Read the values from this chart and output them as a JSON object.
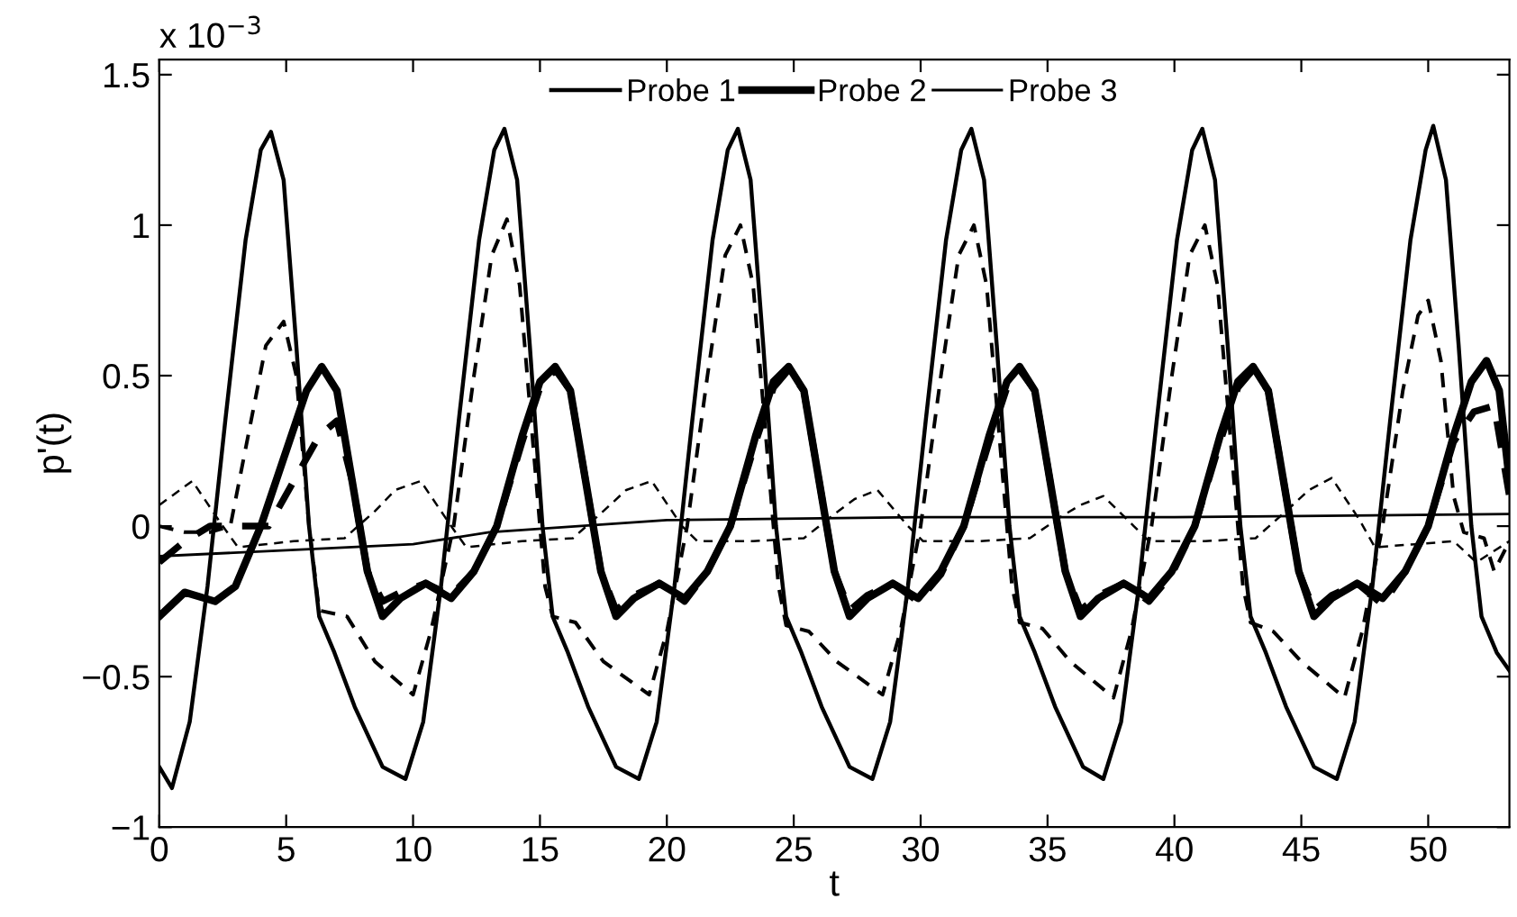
{
  "chart_data": {
    "type": "line",
    "xlabel": "t",
    "ylabel": "p'(t)",
    "annotations": [
      "x 10$^{−3}$"
    ],
    "xlim": [
      0,
      53.2
    ],
    "ylim": [
      -1,
      1.55
    ],
    "xticks": [
      0,
      5,
      10,
      15,
      20,
      25,
      30,
      35,
      40,
      45,
      50
    ],
    "yticks": [
      {
        "value": -1,
        "label": "−1"
      },
      {
        "value": -0.5,
        "label": "−0.5"
      },
      0,
      0.5,
      1,
      1.5
    ],
    "grid": false,
    "legend": "top",
    "marker": "none",
    "series": [
      {
        "name": "Probe 1",
        "color": "#000000",
        "line_style": "solid",
        "x": [
          0,
          0.5,
          1.2,
          1.9,
          2.6,
          3.4,
          4.0,
          4.4,
          4.9,
          5.4,
          5.9,
          6.3,
          6.9,
          7.7,
          8.8,
          9.7,
          10.4,
          11.1,
          11.8,
          12.6,
          13.2,
          13.6,
          14.1,
          14.6,
          15.1,
          15.5,
          16.1,
          16.9,
          18.0,
          18.9,
          19.6,
          20.3,
          21.0,
          21.8,
          22.4,
          22.8,
          23.3,
          23.8,
          24.3,
          24.7,
          25.3,
          26.1,
          27.2,
          28.1,
          28.8,
          29.5,
          30.2,
          31.0,
          31.6,
          32.0,
          32.5,
          33.0,
          33.5,
          33.9,
          34.5,
          35.3,
          36.4,
          37.2,
          37.9,
          38.6,
          39.3,
          40.1,
          40.7,
          41.1,
          41.6,
          42.1,
          42.6,
          43.0,
          43.6,
          44.4,
          45.5,
          46.4,
          47.1,
          47.8,
          48.5,
          49.3,
          49.9,
          50.2,
          50.7,
          51.2,
          51.7,
          52.1,
          52.7,
          53.2
        ],
        "values": [
          -0.8,
          -0.87,
          -0.65,
          -0.2,
          0.35,
          0.95,
          1.25,
          1.31,
          1.15,
          0.6,
          0.0,
          -0.3,
          -0.42,
          -0.6,
          -0.8,
          -0.84,
          -0.65,
          -0.2,
          0.35,
          0.95,
          1.25,
          1.32,
          1.15,
          0.6,
          0.0,
          -0.3,
          -0.42,
          -0.6,
          -0.8,
          -0.84,
          -0.65,
          -0.2,
          0.35,
          0.95,
          1.25,
          1.32,
          1.15,
          0.6,
          0.0,
          -0.3,
          -0.42,
          -0.6,
          -0.8,
          -0.84,
          -0.65,
          -0.2,
          0.35,
          0.95,
          1.25,
          1.32,
          1.15,
          0.6,
          0.0,
          -0.3,
          -0.42,
          -0.6,
          -0.8,
          -0.84,
          -0.65,
          -0.2,
          0.35,
          0.95,
          1.25,
          1.32,
          1.15,
          0.6,
          0.0,
          -0.3,
          -0.42,
          -0.6,
          -0.8,
          -0.84,
          -0.65,
          -0.2,
          0.35,
          0.95,
          1.25,
          1.33,
          1.15,
          0.6,
          0.0,
          -0.3,
          -0.42,
          -0.48
        ]
      },
      {
        "color": "#000000",
        "line_style": "dashed",
        "x": [
          0,
          1.0,
          2.0,
          2.8,
          3.5,
          4.2,
          4.9,
          5.4,
          5.9,
          6.3,
          7.4,
          8.5,
          10.0,
          10.7,
          11.6,
          12.4,
          13.1,
          13.7,
          14.2,
          14.7,
          15.2,
          15.5,
          16.4,
          17.5,
          19.3,
          20.0,
          20.8,
          21.6,
          22.3,
          22.9,
          23.4,
          23.9,
          24.4,
          24.7,
          25.6,
          26.7,
          28.5,
          29.2,
          30.0,
          30.8,
          31.5,
          32.1,
          32.6,
          33.1,
          33.6,
          33.9,
          34.8,
          35.9,
          37.6,
          38.3,
          39.1,
          39.9,
          40.6,
          41.2,
          41.7,
          42.2,
          42.7,
          43.0,
          43.9,
          45.0,
          46.7,
          47.4,
          48.2,
          49.0,
          49.6,
          50.0,
          50.5,
          51.0,
          51.4,
          52.2,
          52.6,
          53.2
        ],
        "values": [
          0.0,
          -0.02,
          -0.02,
          0.0,
          0.3,
          0.6,
          0.68,
          0.5,
          0.0,
          -0.28,
          -0.3,
          -0.45,
          -0.56,
          -0.35,
          0.0,
          0.5,
          0.9,
          1.02,
          0.8,
          0.3,
          -0.2,
          -0.3,
          -0.32,
          -0.45,
          -0.56,
          -0.35,
          0.0,
          0.5,
          0.9,
          1.0,
          0.8,
          0.3,
          -0.2,
          -0.33,
          -0.35,
          -0.45,
          -0.56,
          -0.35,
          0.0,
          0.5,
          0.9,
          1.0,
          0.8,
          0.3,
          -0.2,
          -0.32,
          -0.34,
          -0.45,
          -0.57,
          -0.35,
          0.0,
          0.5,
          0.9,
          1.0,
          0.8,
          0.3,
          -0.2,
          -0.32,
          -0.35,
          -0.45,
          -0.57,
          -0.35,
          0.0,
          0.45,
          0.7,
          0.75,
          0.55,
          0.1,
          -0.02,
          -0.04,
          -0.15,
          -0.05
        ]
      },
      {
        "name": "Probe 2",
        "color": "#000000",
        "line_style": "solid",
        "x": [
          0,
          1.0,
          2.2,
          3.0,
          4.0,
          5.0,
          5.8,
          6.4,
          7.0,
          7.6,
          8.2,
          8.8,
          9.5,
          10.5,
          11.5,
          12.4,
          13.3,
          14.3,
          15.0,
          15.6,
          16.2,
          16.8,
          17.4,
          18.0,
          18.7,
          19.7,
          20.7,
          21.6,
          22.5,
          23.5,
          24.2,
          24.8,
          25.4,
          26.0,
          26.6,
          27.2,
          27.9,
          28.9,
          29.9,
          30.8,
          31.7,
          32.7,
          33.4,
          33.9,
          34.5,
          35.1,
          35.7,
          36.3,
          37.0,
          38.0,
          39.0,
          39.9,
          40.8,
          41.8,
          42.5,
          43.1,
          43.7,
          44.3,
          44.9,
          45.5,
          46.2,
          47.2,
          48.2,
          49.1,
          50.0,
          51.0,
          51.7,
          52.3,
          52.8,
          53.2
        ],
        "values": [
          -0.3,
          -0.22,
          -0.25,
          -0.2,
          0.0,
          0.25,
          0.45,
          0.53,
          0.45,
          0.15,
          -0.15,
          -0.3,
          -0.24,
          -0.19,
          -0.24,
          -0.15,
          0.0,
          0.3,
          0.48,
          0.53,
          0.45,
          0.15,
          -0.15,
          -0.3,
          -0.24,
          -0.19,
          -0.24,
          -0.15,
          0.0,
          0.3,
          0.48,
          0.53,
          0.45,
          0.15,
          -0.15,
          -0.3,
          -0.24,
          -0.19,
          -0.24,
          -0.15,
          0.0,
          0.3,
          0.48,
          0.53,
          0.45,
          0.15,
          -0.15,
          -0.3,
          -0.24,
          -0.19,
          -0.24,
          -0.15,
          0.0,
          0.3,
          0.48,
          0.53,
          0.45,
          0.15,
          -0.15,
          -0.3,
          -0.24,
          -0.19,
          -0.24,
          -0.15,
          0.0,
          0.3,
          0.48,
          0.55,
          0.45,
          0.15
        ]
      },
      {
        "color": "#000000",
        "line_style": "dashed",
        "x": [
          0,
          1.0,
          2.0,
          3.0,
          4.3,
          5.3,
          6.3,
          7.0,
          7.6,
          8.2,
          8.8,
          9.5,
          10.5,
          11.5,
          12.4,
          13.3,
          14.3,
          15.0,
          15.6,
          16.2,
          16.8,
          17.4,
          18.0,
          18.7,
          19.7,
          20.7,
          21.6,
          22.5,
          23.5,
          24.2,
          24.8,
          25.4,
          26.0,
          26.6,
          27.2,
          27.9,
          28.9,
          29.9,
          30.8,
          31.7,
          32.7,
          33.4,
          33.9,
          34.5,
          35.1,
          35.7,
          36.3,
          37.0,
          38.0,
          39.0,
          39.9,
          40.8,
          41.8,
          42.5,
          43.1,
          43.7,
          44.3,
          44.9,
          45.5,
          46.2,
          47.2,
          48.2,
          49.1,
          50.0,
          51.0,
          51.8,
          52.6,
          53.2
        ],
        "values": [
          -0.12,
          -0.05,
          0.0,
          0.0,
          0.0,
          0.15,
          0.3,
          0.35,
          0.15,
          -0.15,
          -0.25,
          -0.22,
          -0.19,
          -0.23,
          -0.15,
          0.0,
          0.28,
          0.46,
          0.52,
          0.45,
          0.15,
          -0.15,
          -0.28,
          -0.23,
          -0.19,
          -0.25,
          -0.15,
          0.0,
          0.28,
          0.46,
          0.52,
          0.45,
          0.15,
          -0.15,
          -0.28,
          -0.23,
          -0.19,
          -0.25,
          -0.16,
          0.0,
          0.28,
          0.46,
          0.52,
          0.45,
          0.15,
          -0.15,
          -0.28,
          -0.23,
          -0.19,
          -0.25,
          -0.16,
          0.0,
          0.28,
          0.46,
          0.52,
          0.45,
          0.15,
          -0.15,
          -0.28,
          -0.23,
          -0.19,
          -0.26,
          -0.15,
          0.0,
          0.28,
          0.38,
          0.4,
          0.1
        ]
      },
      {
        "name": "Probe 3",
        "color": "#000000",
        "line_style": "solid",
        "x": [
          0,
          5,
          10,
          13,
          20,
          30,
          40,
          53.2
        ],
        "values": [
          -0.1,
          -0.08,
          -0.06,
          -0.02,
          0.02,
          0.03,
          0.03,
          0.04
        ]
      },
      {
        "color": "#000000",
        "line_style": "dashed",
        "x": [
          0,
          1.3,
          2.5,
          3.1,
          5.3,
          7.3,
          8.5,
          9.3,
          10.3,
          11.5,
          12.1,
          14.3,
          16.3,
          17.5,
          18.4,
          19.4,
          20.6,
          21.2,
          23.4,
          25.4,
          26.6,
          27.4,
          28.3,
          29.5,
          30.1,
          32.3,
          34.3,
          35.5,
          36.3,
          37.2,
          38.4,
          39.0,
          41.2,
          43.2,
          44.4,
          45.3,
          46.2,
          47.3,
          47.9,
          49.5,
          51.0,
          51.9,
          53.2
        ],
        "values": [
          0.07,
          0.15,
          0.0,
          -0.07,
          -0.05,
          -0.04,
          0.05,
          0.12,
          0.15,
          0.0,
          -0.07,
          -0.05,
          -0.04,
          0.05,
          0.12,
          0.15,
          0.0,
          -0.05,
          -0.05,
          -0.04,
          0.04,
          0.09,
          0.12,
          0.0,
          -0.05,
          -0.05,
          -0.04,
          0.03,
          0.07,
          0.1,
          0.0,
          -0.05,
          -0.05,
          -0.04,
          0.05,
          0.12,
          0.16,
          0.02,
          -0.07,
          -0.06,
          -0.05,
          -0.12,
          -0.05
        ]
      }
    ]
  }
}
